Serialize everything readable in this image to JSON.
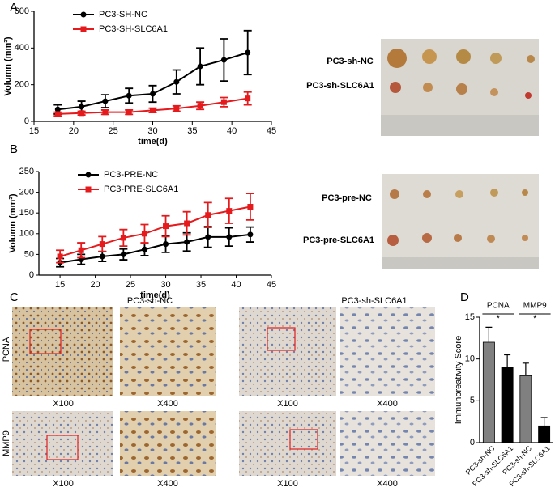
{
  "chart_data": [
    {
      "type": "line",
      "label": "A",
      "xlabel": "time(d)",
      "ylabel": "Volumn (mm³)",
      "x": [
        18,
        21,
        24,
        27,
        30,
        33,
        36,
        39,
        42
      ],
      "xlim": [
        15,
        45
      ],
      "xticks": [
        15,
        20,
        25,
        30,
        35,
        40,
        45
      ],
      "ylim": [
        0,
        600
      ],
      "yticks": [
        0,
        200,
        400,
        600
      ],
      "legend": "upper left",
      "series": [
        {
          "name": "PC3-SH-NC",
          "color": "#000000",
          "marker": "circle",
          "values": [
            65,
            80,
            110,
            140,
            150,
            215,
            300,
            335,
            375
          ],
          "errors": [
            25,
            30,
            35,
            40,
            45,
            65,
            100,
            115,
            120
          ]
        },
        {
          "name": "PC3-SH-SLC6A1",
          "color": "#e41a1c",
          "marker": "square",
          "values": [
            40,
            45,
            50,
            50,
            60,
            70,
            85,
            105,
            125
          ],
          "errors": [
            10,
            10,
            12,
            12,
            12,
            15,
            20,
            25,
            35
          ]
        }
      ]
    },
    {
      "type": "line",
      "label": "B",
      "xlabel": "time(d)",
      "ylabel": "Volumn (mm³)",
      "x": [
        15,
        18,
        21,
        24,
        27,
        30,
        33,
        36,
        39,
        42
      ],
      "xlim": [
        12,
        45
      ],
      "xticks": [
        15,
        20,
        25,
        30,
        35,
        40,
        45
      ],
      "ylim": [
        0,
        250
      ],
      "yticks": [
        0,
        50,
        100,
        150,
        200,
        250
      ],
      "legend": "upper left",
      "series": [
        {
          "name": "PC3-PRE-NC",
          "color": "#000000",
          "marker": "circle",
          "values": [
            30,
            38,
            45,
            50,
            62,
            75,
            80,
            92,
            92,
            98
          ],
          "errors": [
            10,
            12,
            12,
            13,
            15,
            20,
            22,
            25,
            22,
            18
          ]
        },
        {
          "name": "PC3-PRE-SLC6A1",
          "color": "#e41a1c",
          "marker": "square",
          "values": [
            45,
            60,
            75,
            90,
            100,
            118,
            125,
            145,
            155,
            165
          ],
          "errors": [
            15,
            18,
            18,
            20,
            22,
            25,
            28,
            30,
            30,
            32
          ]
        }
      ]
    },
    {
      "type": "bar",
      "label": "D",
      "ylabel": "Immunoreativity Score",
      "categories": [
        "PC3-sh-NC",
        "PC3-sh-SLC6A1",
        "PC3-sh-NC",
        "PC3-sh-SLC6A1"
      ],
      "values": [
        12,
        9,
        8,
        2
      ],
      "errors": [
        1.8,
        1.5,
        1.5,
        1.0
      ],
      "colors": [
        "#808080",
        "#000000",
        "#808080",
        "#000000"
      ],
      "ylim": [
        0,
        15
      ],
      "yticks": [
        0,
        5,
        10,
        15
      ],
      "groups": [
        {
          "label": "PCNA",
          "sig": "*"
        },
        {
          "label": "MMP9",
          "sig": "*"
        }
      ]
    }
  ],
  "figure": {
    "photo_a_labels": [
      "PC3-sh-NC",
      "PC3-sh-SLC6A1"
    ],
    "photo_b_labels": [
      "PC3-pre-NC",
      "PC3-pre-SLC6A1"
    ],
    "panel_c": {
      "label": "C",
      "columns": [
        "PC3-sh-NC",
        "PC3-sh-SLC6A1"
      ],
      "rows": [
        "PCNA",
        "MMP9"
      ],
      "magnifications": [
        "X100",
        "X400",
        "X100",
        "X400",
        "X100",
        "X400",
        "X100",
        "X400"
      ]
    }
  }
}
